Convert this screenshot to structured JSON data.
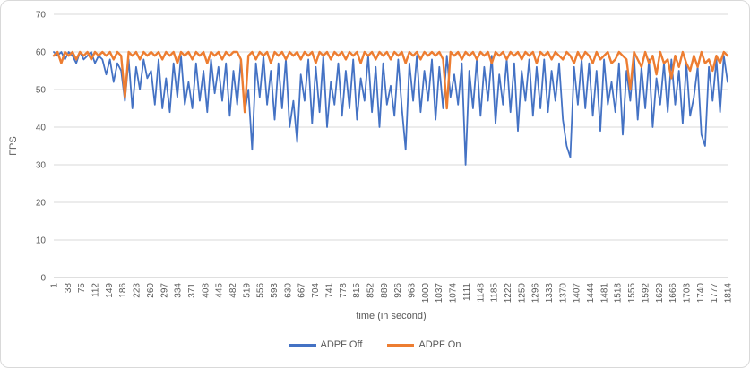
{
  "chart_data": {
    "type": "line",
    "title": "",
    "xlabel": "time (in second)",
    "ylabel": "FPS",
    "xlim": [
      1,
      1814
    ],
    "ylim": [
      0,
      70
    ],
    "grid": "horizontal",
    "legend_position": "bottom-center",
    "y_ticks": [
      0,
      10,
      20,
      30,
      40,
      50,
      60,
      70
    ],
    "x_ticks": [
      1,
      38,
      75,
      112,
      149,
      186,
      223,
      260,
      297,
      334,
      371,
      408,
      445,
      482,
      519,
      556,
      593,
      630,
      667,
      704,
      741,
      778,
      815,
      852,
      889,
      926,
      963,
      1000,
      1037,
      1074,
      1111,
      1148,
      1185,
      1222,
      1259,
      1296,
      1333,
      1370,
      1407,
      1444,
      1481,
      1518,
      1555,
      1592,
      1629,
      1666,
      1703,
      1740,
      1777,
      1814
    ],
    "colors": {
      "gridline": "#D9D9D9",
      "axis_line": "#BFBFBF",
      "tick_text": "#595959"
    },
    "series": [
      {
        "name": "ADPF Off",
        "color": "#4472C4",
        "values": [
          60,
          59,
          60,
          58,
          60,
          59,
          57,
          60,
          58,
          59,
          60,
          57,
          59,
          58,
          54,
          58,
          52,
          57,
          55,
          47,
          58,
          45,
          56,
          50,
          58,
          53,
          55,
          46,
          58,
          45,
          53,
          44,
          57,
          48,
          59,
          46,
          52,
          45,
          57,
          47,
          55,
          44,
          58,
          49,
          56,
          47,
          57,
          43,
          55,
          46,
          58,
          44,
          50,
          34,
          57,
          48,
          59,
          46,
          55,
          42,
          57,
          45,
          58,
          40,
          47,
          36,
          54,
          47,
          58,
          41,
          56,
          44,
          59,
          40,
          52,
          46,
          57,
          43,
          55,
          45,
          58,
          42,
          53,
          47,
          59,
          44,
          56,
          40,
          57,
          46,
          51,
          43,
          58,
          45,
          34,
          57,
          47,
          59,
          44,
          55,
          47,
          58,
          42,
          56,
          45,
          59,
          48,
          54,
          46,
          57,
          30,
          55,
          45,
          58,
          43,
          56,
          47,
          59,
          41,
          54,
          46,
          58,
          44,
          57,
          39,
          55,
          47,
          58,
          43,
          56,
          45,
          58,
          44,
          55,
          47,
          57,
          42,
          35,
          32,
          56,
          46,
          58,
          45,
          57,
          43,
          55,
          39,
          58,
          46,
          52,
          44,
          57,
          38,
          55,
          47,
          59,
          42,
          56,
          45,
          58,
          40,
          53,
          46,
          57,
          44,
          58,
          46,
          55,
          41,
          57,
          43,
          48,
          56,
          38,
          35,
          56,
          47,
          58,
          44,
          59,
          52
        ]
      },
      {
        "name": "ADPF On",
        "color": "#ED7D31",
        "values": [
          59,
          60,
          57,
          60,
          59,
          60,
          58,
          60,
          59,
          60,
          58,
          60,
          59,
          60,
          59,
          60,
          58,
          60,
          59,
          48,
          60,
          59,
          60,
          58,
          60,
          59,
          60,
          59,
          60,
          58,
          60,
          59,
          60,
          57,
          60,
          59,
          60,
          58,
          60,
          59,
          60,
          57,
          60,
          59,
          60,
          58,
          60,
          59,
          60,
          60,
          58,
          44,
          59,
          60,
          58,
          60,
          59,
          60,
          57,
          60,
          59,
          60,
          58,
          60,
          59,
          60,
          58,
          60,
          59,
          60,
          57,
          60,
          59,
          60,
          58,
          60,
          59,
          60,
          58,
          60,
          59,
          60,
          57,
          60,
          59,
          60,
          58,
          60,
          59,
          60,
          58,
          60,
          59,
          60,
          57,
          60,
          59,
          60,
          58,
          60,
          59,
          60,
          59,
          60,
          58,
          45,
          60,
          59,
          60,
          58,
          60,
          59,
          60,
          58,
          60,
          59,
          60,
          57,
          60,
          59,
          60,
          58,
          60,
          59,
          60,
          58,
          60,
          59,
          60,
          57,
          60,
          59,
          60,
          58,
          60,
          59,
          58,
          60,
          59,
          57,
          60,
          58,
          60,
          59,
          57,
          60,
          58,
          59,
          60,
          57,
          58,
          60,
          59,
          58,
          50,
          60,
          58,
          56,
          60,
          57,
          59,
          54,
          60,
          57,
          58,
          53,
          59,
          56,
          60,
          57,
          55,
          59,
          56,
          60,
          57,
          58,
          55,
          59,
          57,
          60,
          59
        ]
      }
    ]
  }
}
